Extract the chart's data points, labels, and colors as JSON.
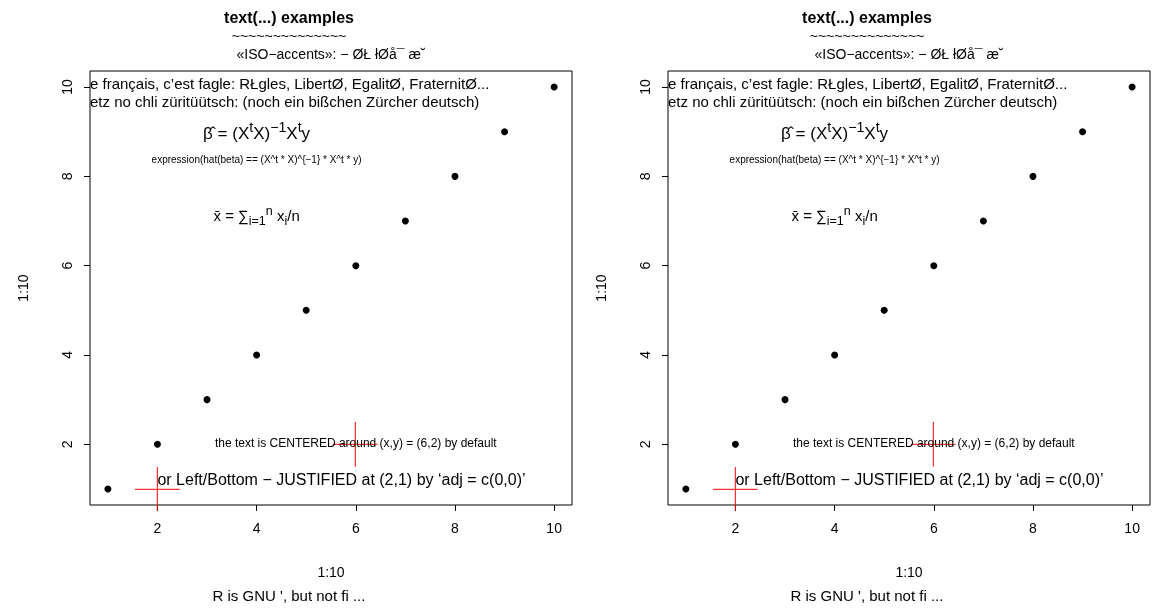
{
  "chart_data": [
    {
      "type": "scatter",
      "title": "text(...) examples",
      "subtitle": "~~~~~~~~~~~~~~",
      "xlabel": "1:10",
      "ylabel": "1:10",
      "x": [
        1,
        2,
        3,
        4,
        5,
        6,
        7,
        8,
        9,
        10
      ],
      "series": [
        {
          "color": "#000000",
          "values": [
            1,
            2,
            3,
            4,
            5,
            6,
            7,
            8,
            9,
            10
          ]
        }
      ],
      "xlim": [
        0.64,
        10.36
      ],
      "ylim": [
        0.64,
        10.36
      ],
      "xticks": [
        2,
        4,
        6,
        8,
        10
      ],
      "yticks": [
        2,
        4,
        6,
        8,
        10
      ],
      "grid": false,
      "marker": "circle",
      "annotations": [
        "«ISO−accents»: − ØŁ łØå¯ æ˘",
        "e français, c’est fagle: RŁgles, LibertØ, EgalitØ, FraternitØ...",
        "etz no chli züritüütsch: (noch ein bißchen Zürcher deutsch)",
        "β̂ = (X$^{t}$X)$^{−1}$X$^{t}$y",
        "expression(hat(beta) == (X^t * X)^{−1} * X^t * y)",
        "x̄ = ∑$_{i=1}$$^{n}$ x$_{i}$/n",
        "the text is CENTERED around (x,y) = (6,2) by default",
        "or Left/Bottom − JUSTIFIED at (2,1) by ‘adj = c(0,0)’",
        "R is GNU ', but not fi ..."
      ]
    },
    {
      "type": "scatter",
      "title": "text(...) examples",
      "subtitle": "~~~~~~~~~~~~~~",
      "xlabel": "1:10",
      "ylabel": "1:10",
      "x": [
        1,
        2,
        3,
        4,
        5,
        6,
        7,
        8,
        9,
        10
      ],
      "series": [
        {
          "color": "#000000",
          "values": [
            1,
            2,
            3,
            4,
            5,
            6,
            7,
            8,
            9,
            10
          ]
        }
      ],
      "xlim": [
        0.64,
        10.36
      ],
      "ylim": [
        0.64,
        10.36
      ],
      "xticks": [
        2,
        4,
        6,
        8,
        10
      ],
      "yticks": [
        2,
        4,
        6,
        8,
        10
      ],
      "grid": false,
      "marker": "circle",
      "annotations": [
        "«ISO−accents»: − ØŁ łØå¯ æ˘",
        "e français, c’est fagle: RŁgles, LibertØ, EgalitØ, FraternitØ...",
        "etz no chli züritüütsch: (noch ein bißchen Zürcher deutsch)",
        "β̂ = (X$^{t}$X)$^{−1}$X$^{t}$y",
        "expression(hat(beta) == (X^t * X)^{−1} * X^t * y)",
        "x̄ = ∑$_{i=1}$$^{n}$ x$_{i}$/n",
        "the text is CENTERED around (x,y) = (6,2) by default",
        "or Left/Bottom − JUSTIFIED at (2,1) by ‘adj = c(0,0)’",
        "R is GNU ', but not fi ..."
      ]
    }
  ]
}
